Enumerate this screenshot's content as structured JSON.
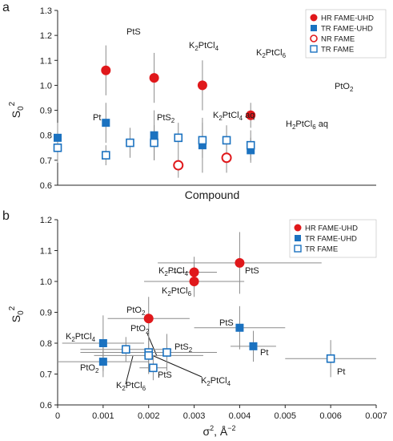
{
  "figure": {
    "colors": {
      "red": "#e0181b",
      "blue": "#1b72c0",
      "err": "#8c8c8c",
      "axis": "#262626"
    }
  },
  "chart_data": [
    {
      "panel_label": "a",
      "type": "scatter",
      "xlabel": "Compound",
      "ylabel": "S0^2",
      "ylim": [
        0.6,
        1.3
      ],
      "yticks": [
        0.6,
        0.7,
        0.8,
        0.9,
        1.0,
        1.1,
        1.2,
        1.3
      ],
      "ytick_labels": [
        "0.6",
        "0.7",
        "0.8",
        "0.9",
        "1.0",
        "1.1",
        "1.2",
        "1.3"
      ],
      "xlim": [
        0,
        6.6
      ],
      "legend_position": "top-right",
      "series": [
        {
          "name": "HR FAME-UHD",
          "marker": "filled-circle",
          "color": "#e0181b",
          "points": [
            {
              "x": 1,
              "y": 1.06,
              "err": 0.1
            },
            {
              "x": 2,
              "y": 1.03,
              "err": 0.1
            },
            {
              "x": 3,
              "y": 1.0,
              "err": 0.1
            },
            {
              "x": 4,
              "y": 0.88,
              "err": 0.05
            }
          ]
        },
        {
          "name": "TR FAME-UHD",
          "marker": "filled-square",
          "color": "#1b72c0",
          "points": [
            {
              "x": 0,
              "y": 0.79,
              "err": 0.06
            },
            {
              "x": 1,
              "y": 0.85,
              "err": 0.08
            },
            {
              "x": 2,
              "y": 0.8,
              "err": 0.1
            },
            {
              "x": 3,
              "y": 0.76,
              "err": 0.11
            },
            {
              "x": 4,
              "y": 0.74,
              "err": 0.05
            }
          ]
        },
        {
          "name": "NR FAME",
          "marker": "open-circle",
          "color": "#e0181b",
          "points": [
            {
              "x": 2.5,
              "y": 0.68,
              "err": 0.05
            },
            {
              "x": 3.5,
              "y": 0.71,
              "err": 0.06
            }
          ]
        },
        {
          "name": "TR FAME",
          "marker": "open-square",
          "color": "#1b72c0",
          "points": [
            {
              "x": 0,
              "y": 0.75,
              "err": 0.06
            },
            {
              "x": 1,
              "y": 0.72,
              "err": 0.04
            },
            {
              "x": 1.5,
              "y": 0.77,
              "err": 0.06
            },
            {
              "x": 2,
              "y": 0.77,
              "err": 0.07
            },
            {
              "x": 2.5,
              "y": 0.79,
              "err": 0.06
            },
            {
              "x": 3,
              "y": 0.78,
              "err": 0.07
            },
            {
              "x": 3.5,
              "y": 0.78,
              "err": 0.06
            },
            {
              "x": 4,
              "y": 0.76,
              "err": 0.06
            }
          ]
        }
      ],
      "annotations": [
        {
          "text": "Pt",
          "x": 0,
          "y": 0.83
        },
        {
          "text": "PtS",
          "x": 1,
          "y": 1.17
        },
        {
          "text": "PtS2",
          "x": 1.5,
          "y": 0.83
        },
        {
          "text": "K2PtCl4",
          "x": 2,
          "y": 1.14
        },
        {
          "text": "K2PtCl4 aq",
          "x": 2.5,
          "y": 0.86
        },
        {
          "text": "K2PtCl6",
          "x": 3,
          "y": 1.11
        },
        {
          "text": "H2PtCl6 aq",
          "x": 3.5,
          "y": 0.82
        },
        {
          "text": "PtO2",
          "x": 4,
          "y": 0.96
        }
      ]
    },
    {
      "panel_label": "b",
      "type": "scatter",
      "xlabel": "σ², Å⁻²",
      "ylabel": "S0^2",
      "xlim": [
        0,
        0.007
      ],
      "ylim": [
        0.6,
        1.2
      ],
      "xticks": [
        0,
        0.001,
        0.002,
        0.003,
        0.004,
        0.005,
        0.006,
        0.007
      ],
      "xtick_labels": [
        "0",
        "0.001",
        "0.002",
        "0.003",
        "0.004",
        "0.005",
        "0.006",
        "0.007"
      ],
      "yticks": [
        0.6,
        0.7,
        0.8,
        0.9,
        1.0,
        1.1,
        1.2
      ],
      "ytick_labels": [
        "0.6",
        "0.7",
        "0.8",
        "0.9",
        "1.0",
        "1.1",
        "1.2"
      ],
      "legend_position": "top-right",
      "series": [
        {
          "name": "HR FAME-UHD",
          "marker": "filled-circle",
          "color": "#e0181b",
          "points": [
            {
              "x": 0.004,
              "y": 1.06,
              "xerr": 0.0018,
              "yerr": 0.1
            },
            {
              "x": 0.003,
              "y": 1.03,
              "xerr": 0.0005,
              "yerr": 0.05
            },
            {
              "x": 0.003,
              "y": 1.0,
              "xerr": 0.0011,
              "yerr": 0.05
            },
            {
              "x": 0.002,
              "y": 0.88,
              "xerr": 0.0009,
              "yerr": 0.07
            }
          ]
        },
        {
          "name": "TR FAME-UHD",
          "marker": "filled-square",
          "color": "#1b72c0",
          "points": [
            {
              "x": 0.004,
              "y": 0.85,
              "xerr": 0.001,
              "yerr": 0.07
            },
            {
              "x": 0.0043,
              "y": 0.79,
              "xerr": 0.0005,
              "yerr": 0.05
            },
            {
              "x": 0.001,
              "y": 0.8,
              "xerr": 0.0009,
              "yerr": 0.09
            },
            {
              "x": 0.001,
              "y": 0.74,
              "xerr": 0.001,
              "yerr": 0.05
            }
          ]
        },
        {
          "name": "TR FAME",
          "marker": "open-square",
          "color": "#1b72c0",
          "points": [
            {
              "x": 0.006,
              "y": 0.75,
              "xerr": 0.001,
              "yerr": 0.06
            },
            {
              "x": 0.0015,
              "y": 0.78,
              "xerr": 0.001,
              "yerr": 0.04
            },
            {
              "x": 0.002,
              "y": 0.77,
              "xerr": 0.0015,
              "yerr": 0.07
            },
            {
              "x": 0.002,
              "y": 0.76,
              "xerr": 0.0012,
              "yerr": 0.05
            },
            {
              "x": 0.0024,
              "y": 0.77,
              "xerr": 0.0007,
              "yerr": 0.06
            },
            {
              "x": 0.0021,
              "y": 0.72,
              "xerr": 0.0003,
              "yerr": 0.04
            }
          ]
        }
      ],
      "annotations": [
        {
          "text": "K2PtCl4",
          "x": 0.0013,
          "y": 1.04
        },
        {
          "text": "K2PtCl6",
          "x": 0.0013,
          "y": 0.985
        },
        {
          "text": "PtS",
          "x": 0.0041,
          "y": 1.01
        },
        {
          "text": "PtO2",
          "x": 0.0017,
          "y": 0.89
        },
        {
          "text": "PtS",
          "x": 0.0033,
          "y": 0.85
        },
        {
          "text": "Pt",
          "x": 0.0044,
          "y": 0.755
        },
        {
          "text": "Pt",
          "x": 0.0061,
          "y": 0.715
        },
        {
          "text": "K2PtCl4",
          "x": 0.0,
          "y": 0.82
        },
        {
          "text": "PtO2",
          "x": 0.0004,
          "y": 0.72
        },
        {
          "text": "PtO2",
          "x": 0.0017,
          "y": 0.795
        },
        {
          "text": "PtS2",
          "x": 0.0025,
          "y": 0.775
        },
        {
          "text": "PtS",
          "x": 0.0021,
          "y": 0.705
        },
        {
          "text": "K2PtCl6",
          "x": 0.0013,
          "y": 0.675
        },
        {
          "text": "K2PtCl4",
          "x": 0.0031,
          "y": 0.68
        }
      ]
    }
  ]
}
